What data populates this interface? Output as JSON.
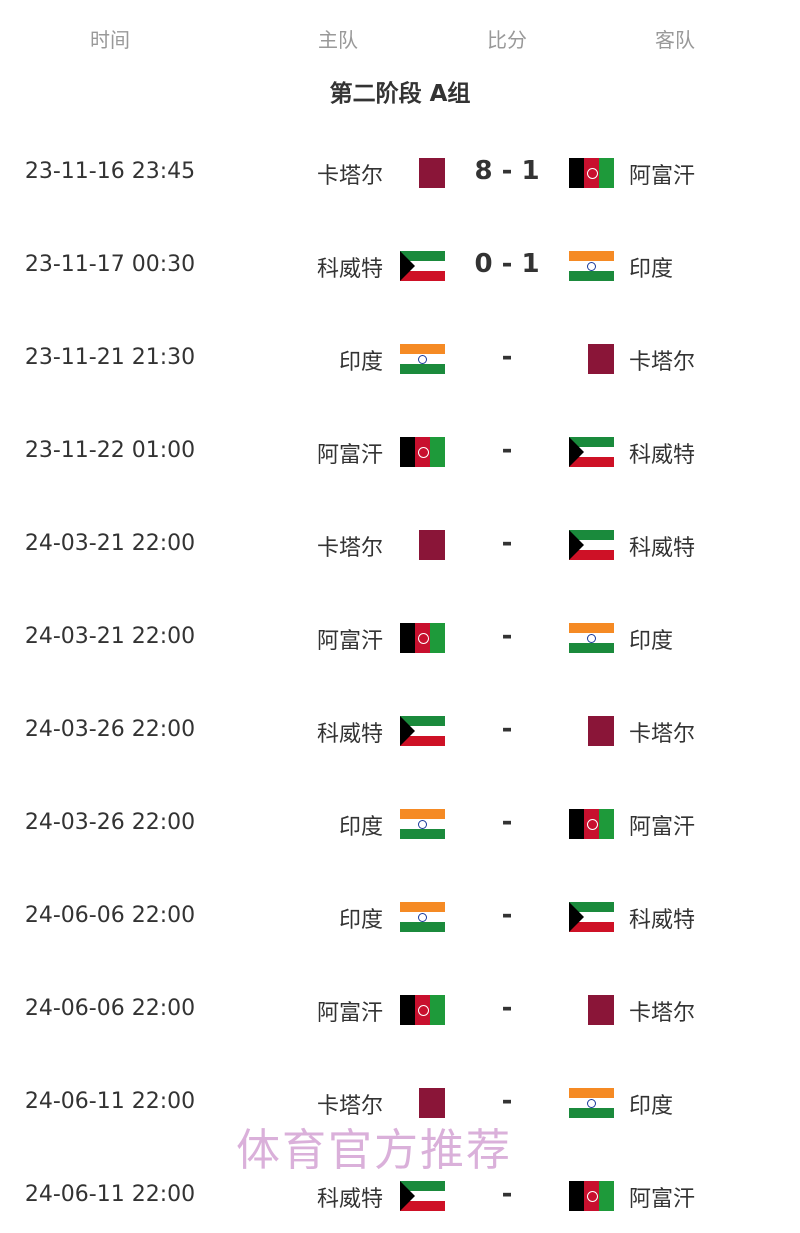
{
  "headers": {
    "time": "时间",
    "home": "主队",
    "score": "比分",
    "away": "客队"
  },
  "title": "第二阶段 A组",
  "flag_colors": {
    "qatar": "#8a1538",
    "afghanistan": [
      "#000000",
      "#c8102e",
      "#1e9a3a"
    ],
    "kuwait": [
      "#1a8a3c",
      "#ffffff",
      "#ce1126",
      "#000000"
    ],
    "india": [
      "#f58a24",
      "#ffffff",
      "#1b8a3c"
    ]
  },
  "matches": [
    {
      "time": "23-11-16 23:45",
      "home": "卡塔尔",
      "home_flag": "qa",
      "score": "8 - 1",
      "away": "阿富汗",
      "away_flag": "af"
    },
    {
      "time": "23-11-17 00:30",
      "home": "科威特",
      "home_flag": "kw",
      "score": "0 - 1",
      "away": "印度",
      "away_flag": "in"
    },
    {
      "time": "23-11-21 21:30",
      "home": "印度",
      "home_flag": "in",
      "score": "-",
      "away": "卡塔尔",
      "away_flag": "qa"
    },
    {
      "time": "23-11-22 01:00",
      "home": "阿富汗",
      "home_flag": "af",
      "score": "-",
      "away": "科威特",
      "away_flag": "kw"
    },
    {
      "time": "24-03-21 22:00",
      "home": "卡塔尔",
      "home_flag": "qa",
      "score": "-",
      "away": "科威特",
      "away_flag": "kw"
    },
    {
      "time": "24-03-21 22:00",
      "home": "阿富汗",
      "home_flag": "af",
      "score": "-",
      "away": "印度",
      "away_flag": "in"
    },
    {
      "time": "24-03-26 22:00",
      "home": "科威特",
      "home_flag": "kw",
      "score": "-",
      "away": "卡塔尔",
      "away_flag": "qa"
    },
    {
      "time": "24-03-26 22:00",
      "home": "印度",
      "home_flag": "in",
      "score": "-",
      "away": "阿富汗",
      "away_flag": "af"
    },
    {
      "time": "24-06-06 22:00",
      "home": "印度",
      "home_flag": "in",
      "score": "-",
      "away": "科威特",
      "away_flag": "kw"
    },
    {
      "time": "24-06-06 22:00",
      "home": "阿富汗",
      "home_flag": "af",
      "score": "-",
      "away": "卡塔尔",
      "away_flag": "qa"
    },
    {
      "time": "24-06-11 22:00",
      "home": "卡塔尔",
      "home_flag": "qa",
      "score": "-",
      "away": "印度",
      "away_flag": "in"
    },
    {
      "time": "24-06-11 22:00",
      "home": "科威特",
      "home_flag": "kw",
      "score": "-",
      "away": "阿富汗",
      "away_flag": "af"
    }
  ],
  "watermark": "体育官方推荐"
}
